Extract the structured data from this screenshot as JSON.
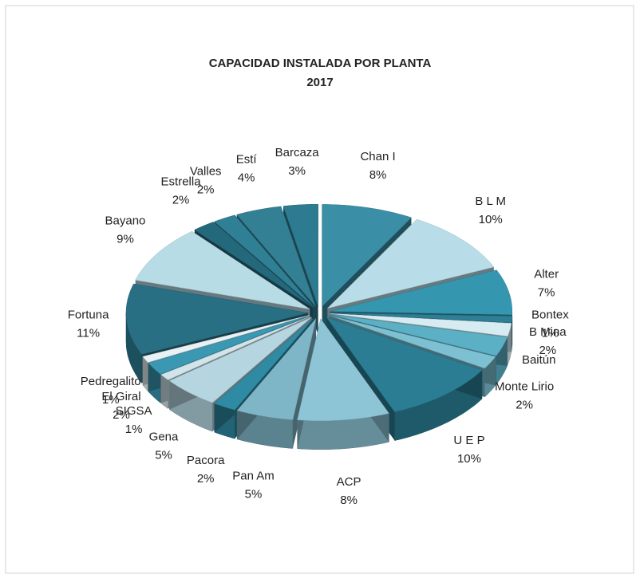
{
  "chart_data": {
    "type": "pie3d",
    "title": "CAPACIDAD  INSTALADA  POR  PLANTA",
    "subtitle": "2017",
    "categories": [
      "Chan I",
      "B L M",
      "Alter",
      "Bontex",
      "B Mina",
      "Baitún",
      "Monte Lirio",
      "U E P",
      "ACP",
      "Pan Am",
      "Pacora",
      "Gena",
      "SIGSA",
      "El Giral",
      "Pedregalito",
      "Fortuna",
      "Bayano",
      "Estrella",
      "Valles",
      "Estí",
      "Barcaza"
    ],
    "values": [
      8,
      10,
      7,
      1,
      2,
      3,
      2,
      10,
      8,
      5,
      2,
      5,
      1,
      2,
      1,
      11,
      9,
      2,
      2,
      4,
      3
    ],
    "value_labels": [
      "8%",
      "10%",
      "7%",
      "1%",
      "2%",
      null,
      "2%",
      "10%",
      "8%",
      "5%",
      "2%",
      "5%",
      "1%",
      "2%",
      "1%",
      "11%",
      "9%",
      "2%",
      "2%",
      "4%",
      "3%"
    ],
    "colors": [
      "#3a8ea5",
      "#b9dde8",
      "#3596b0",
      "#2e7f96",
      "#d6ecf2",
      "#5bb0c6",
      "#7cc0d2",
      "#2a7d93",
      "#8ec5d6",
      "#7fb6c7",
      "#2f8aa3",
      "#b5d6e0",
      "#d0e4ea",
      "#3a98b2",
      "#e8f1f4",
      "#286f84",
      "#b7dce6",
      "#24687c",
      "#2f7f95",
      "#337f94",
      "#2d7b90"
    ]
  }
}
